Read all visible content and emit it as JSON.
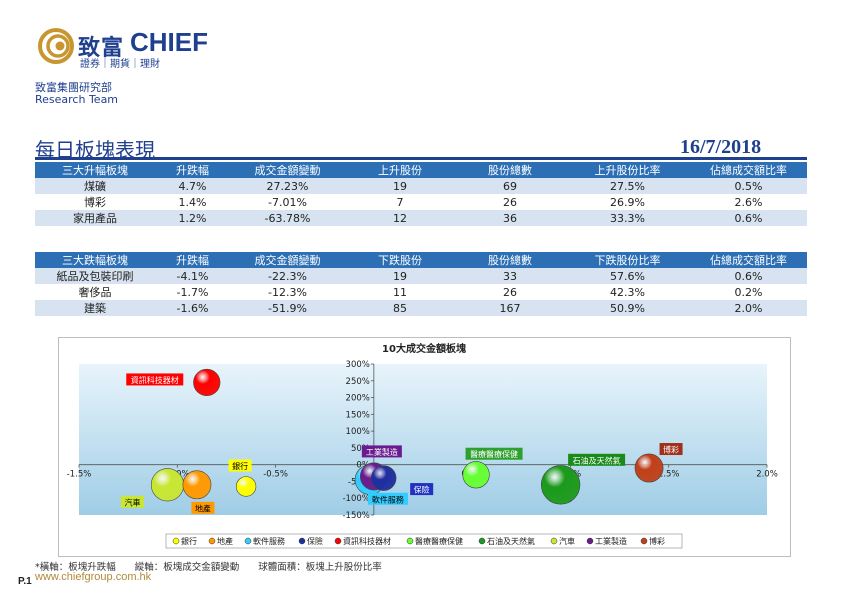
{
  "brand": {
    "name_zh": "致富",
    "name_en": "CHIEF",
    "tagline": "證券｜期貨｜理財",
    "dept_zh": "致富集團研究部",
    "dept_en": "Research Team",
    "colors": {
      "navy": "#1f3f8f",
      "table_header": "#2c6fb5",
      "row_shade": "#d7e3f0",
      "gold": "#c7962e"
    }
  },
  "report": {
    "title": "每日板塊表現",
    "date": "16/7/2018"
  },
  "top_table": {
    "headers": [
      "三大升幅板塊",
      "升跌幅",
      "成交金額變動",
      "上升股份",
      "股份總數",
      "上升股份比率",
      "佔總成交額比率"
    ],
    "rows": [
      [
        "煤礦",
        "4.7%",
        "27.23%",
        "19",
        "69",
        "27.5%",
        "0.5%"
      ],
      [
        "博彩",
        "1.4%",
        "-7.01%",
        "7",
        "26",
        "26.9%",
        "2.6%"
      ],
      [
        "家用產品",
        "1.2%",
        "-63.78%",
        "12",
        "36",
        "33.3%",
        "0.6%"
      ]
    ]
  },
  "bottom_table": {
    "headers": [
      "三大跌幅板塊",
      "升跌幅",
      "成交金額變動",
      "下跌股份",
      "股份總數",
      "下跌股份比率",
      "佔總成交額比率"
    ],
    "rows": [
      [
        "紙品及包裝印刷",
        "-4.1%",
        "-22.3%",
        "19",
        "33",
        "57.6%",
        "0.6%"
      ],
      [
        "奢侈品",
        "-1.7%",
        "-12.3%",
        "11",
        "26",
        "42.3%",
        "0.2%"
      ],
      [
        "建築",
        "-1.6%",
        "-51.9%",
        "85",
        "167",
        "50.9%",
        "2.0%"
      ]
    ]
  },
  "chart_data": {
    "type": "scatter",
    "subtype": "bubble",
    "title": "10大成交金額板塊",
    "xlim": [
      -1.5,
      2.0
    ],
    "ylim": [
      -150,
      300
    ],
    "x_ticks": [
      "-1.5%",
      "-1.0%",
      "-0.5%",
      "0.0%",
      "0.5%",
      "1.0%",
      "1.5%",
      "2.0%"
    ],
    "y_ticks": [
      "300%",
      "250%",
      "200%",
      "150%",
      "100%",
      "50%",
      "0%",
      "-50%",
      "-100%",
      "-150%"
    ],
    "grid": false,
    "legend_position": "bottom",
    "series": [
      {
        "name": "銀行",
        "x": -0.65,
        "y": -65,
        "size": 0.22,
        "color": "#ffff00",
        "label_bg": "#ffff00",
        "label_fg": "#000000"
      },
      {
        "name": "地產",
        "x": -0.9,
        "y": -60,
        "size": 0.45,
        "color": "#ff9900",
        "label_bg": "#ff9900",
        "label_fg": "#000000"
      },
      {
        "name": "軟件服務",
        "x": -0.02,
        "y": -45,
        "size": 0.5,
        "color": "#33ccff",
        "label_bg": "#33ccff",
        "label_fg": "#000000"
      },
      {
        "name": "保險",
        "x": 0.05,
        "y": -40,
        "size": 0.35,
        "color": "#1f2f9f",
        "label_bg": "#2030c0",
        "label_fg": "#ffffff"
      },
      {
        "name": "資訊科技器材",
        "x": -0.85,
        "y": 245,
        "size": 0.4,
        "color": "#ff0000",
        "label_bg": "#ff0000",
        "label_fg": "#ffffff"
      },
      {
        "name": "醫療醫療保健",
        "x": 0.52,
        "y": -30,
        "size": 0.4,
        "color": "#66ff33",
        "label_bg": "#2ea02e",
        "label_fg": "#ffffff"
      },
      {
        "name": "石油及天然氣",
        "x": 0.95,
        "y": -60,
        "size": 0.85,
        "color": "#1b9a1b",
        "label_bg": "#1a8a1a",
        "label_fg": "#ffffff"
      },
      {
        "name": "汽車",
        "x": -1.05,
        "y": -60,
        "size": 0.6,
        "color": "#c8e632",
        "label_bg": "#c8e632",
        "label_fg": "#000000"
      },
      {
        "name": "工業製造",
        "x": 0.0,
        "y": -35,
        "size": 0.42,
        "color": "#6a1b8f",
        "label_bg": "#6a1b8f",
        "label_fg": "#ffffff"
      },
      {
        "name": "博彩",
        "x": 1.4,
        "y": -10,
        "size": 0.45,
        "color": "#c0401a",
        "label_bg": "#a0301a",
        "label_fg": "#ffffff"
      }
    ]
  },
  "footnote": "*橫軸：板塊升跌幅　　縱軸：板塊成交金額變動　　球體面積：板塊上升股份比率",
  "url": "www.chiefgroup.com.hk",
  "page": "P.1"
}
